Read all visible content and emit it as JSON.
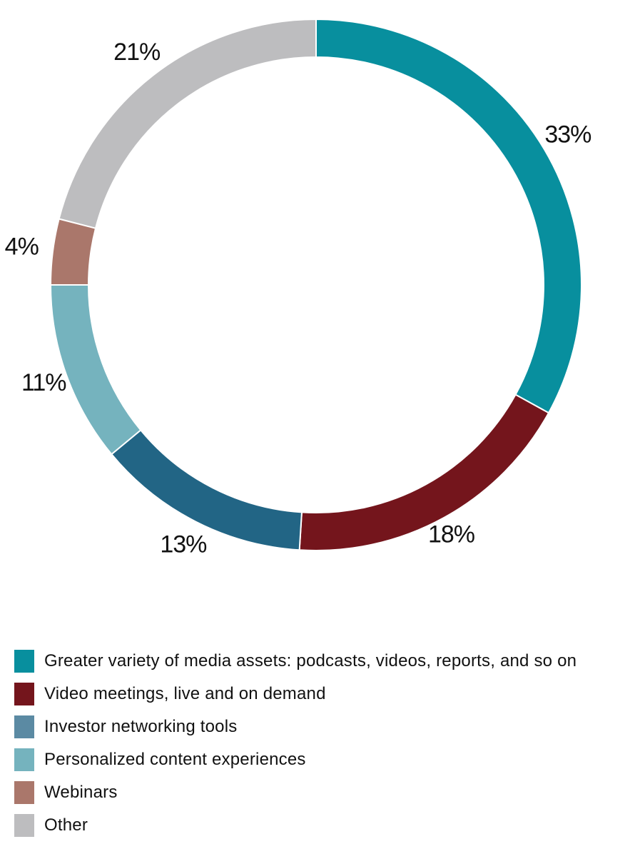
{
  "chart_data": {
    "type": "pie",
    "donut": true,
    "legend_position": "bottom",
    "slices": [
      {
        "label": "Greater variety of media assets: podcasts, videos, reports, and so on",
        "value": 33,
        "value_label": "33%",
        "color": "#088F9E"
      },
      {
        "label": "Video meetings, live and on demand",
        "value": 18,
        "value_label": "18%",
        "color": "#74151C"
      },
      {
        "label": "Investor networking tools",
        "value": 13,
        "value_label": "13%",
        "color": "#226585"
      },
      {
        "label": "Personalized content experiences",
        "value": 11,
        "value_label": "11%",
        "color": "#75B3BE"
      },
      {
        "label": "Webinars",
        "value": 4,
        "value_label": "4%",
        "color": "#AA776B"
      },
      {
        "label": "Other",
        "value": 21,
        "value_label": "21%",
        "color": "#BDBDBF"
      }
    ],
    "legend_swatch_colors": [
      "#088F9E",
      "#74151C",
      "#5B8AA3",
      "#75B3BE",
      "#AA776B",
      "#BDBDBF"
    ]
  }
}
